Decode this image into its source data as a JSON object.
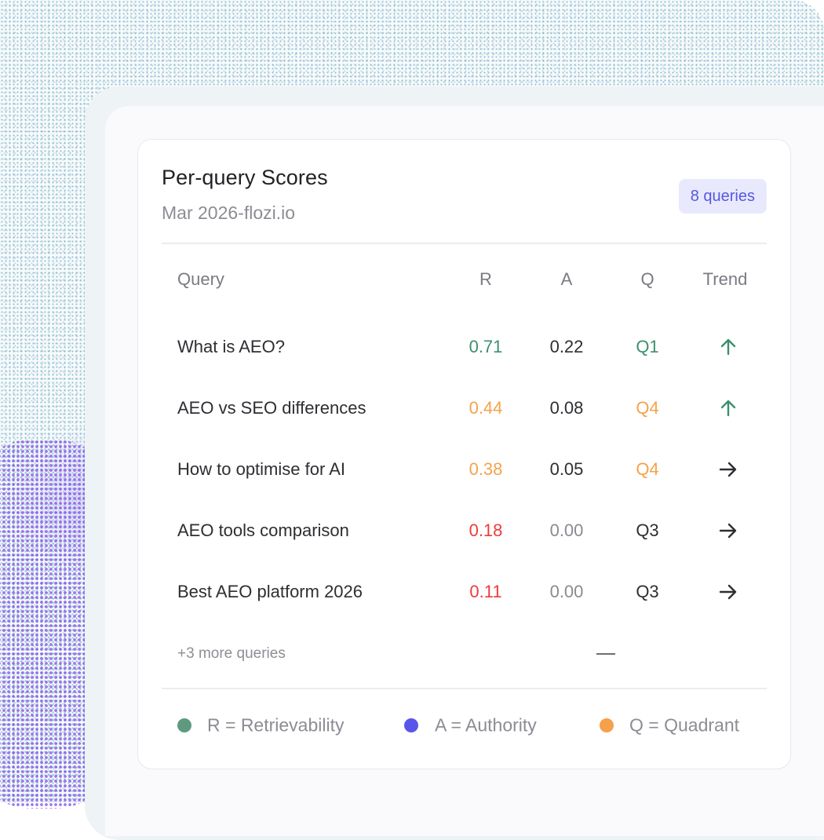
{
  "card": {
    "title": "Per-query Scores",
    "subtitle": "Mar 2026-flozi.io",
    "badge": "8 queries"
  },
  "table": {
    "headers": {
      "query": "Query",
      "r": "R",
      "a": "A",
      "q": "Q",
      "trend": "Trend"
    },
    "rows": [
      {
        "query": "What is AEO?",
        "r": "0.71",
        "a": "0.22",
        "q": "Q1",
        "trend": "up",
        "r_color": "#3c8f6c",
        "a_color": "#2e2e33",
        "q_color": "#3c8f6c"
      },
      {
        "query": "AEO vs SEO differences",
        "r": "0.44",
        "a": "0.08",
        "q": "Q4",
        "trend": "up",
        "r_color": "#f5a24b",
        "a_color": "#2e2e33",
        "q_color": "#f5a24b"
      },
      {
        "query": "How to optimise for AI",
        "r": "0.38",
        "a": "0.05",
        "q": "Q4",
        "trend": "right",
        "r_color": "#f5a24b",
        "a_color": "#2e2e33",
        "q_color": "#f5a24b"
      },
      {
        "query": "AEO tools comparison",
        "r": "0.18",
        "a": "0.00",
        "q": "Q3",
        "trend": "right",
        "r_color": "#ef3b3b",
        "a_color": "#8a8a92",
        "q_color": "#2e2e33"
      },
      {
        "query": "Best AEO platform 2026",
        "r": "0.11",
        "a": "0.00",
        "q": "Q3",
        "trend": "right",
        "r_color": "#ef3b3b",
        "a_color": "#8a8a92",
        "q_color": "#2e2e33"
      }
    ],
    "more": "+3 more queries"
  },
  "legend": [
    {
      "label": "R = Retrievability",
      "color": "#5f9a80"
    },
    {
      "label": "A = Authority",
      "color": "#5a55ea"
    },
    {
      "label": "Q = Quadrant",
      "color": "#f6a04a"
    }
  ],
  "colors": {
    "trend_up": "#3c8f6c",
    "trend_flat": "#2e2e33",
    "badge_text": "#5559e0",
    "badge_bg": "#e9e9fd"
  }
}
